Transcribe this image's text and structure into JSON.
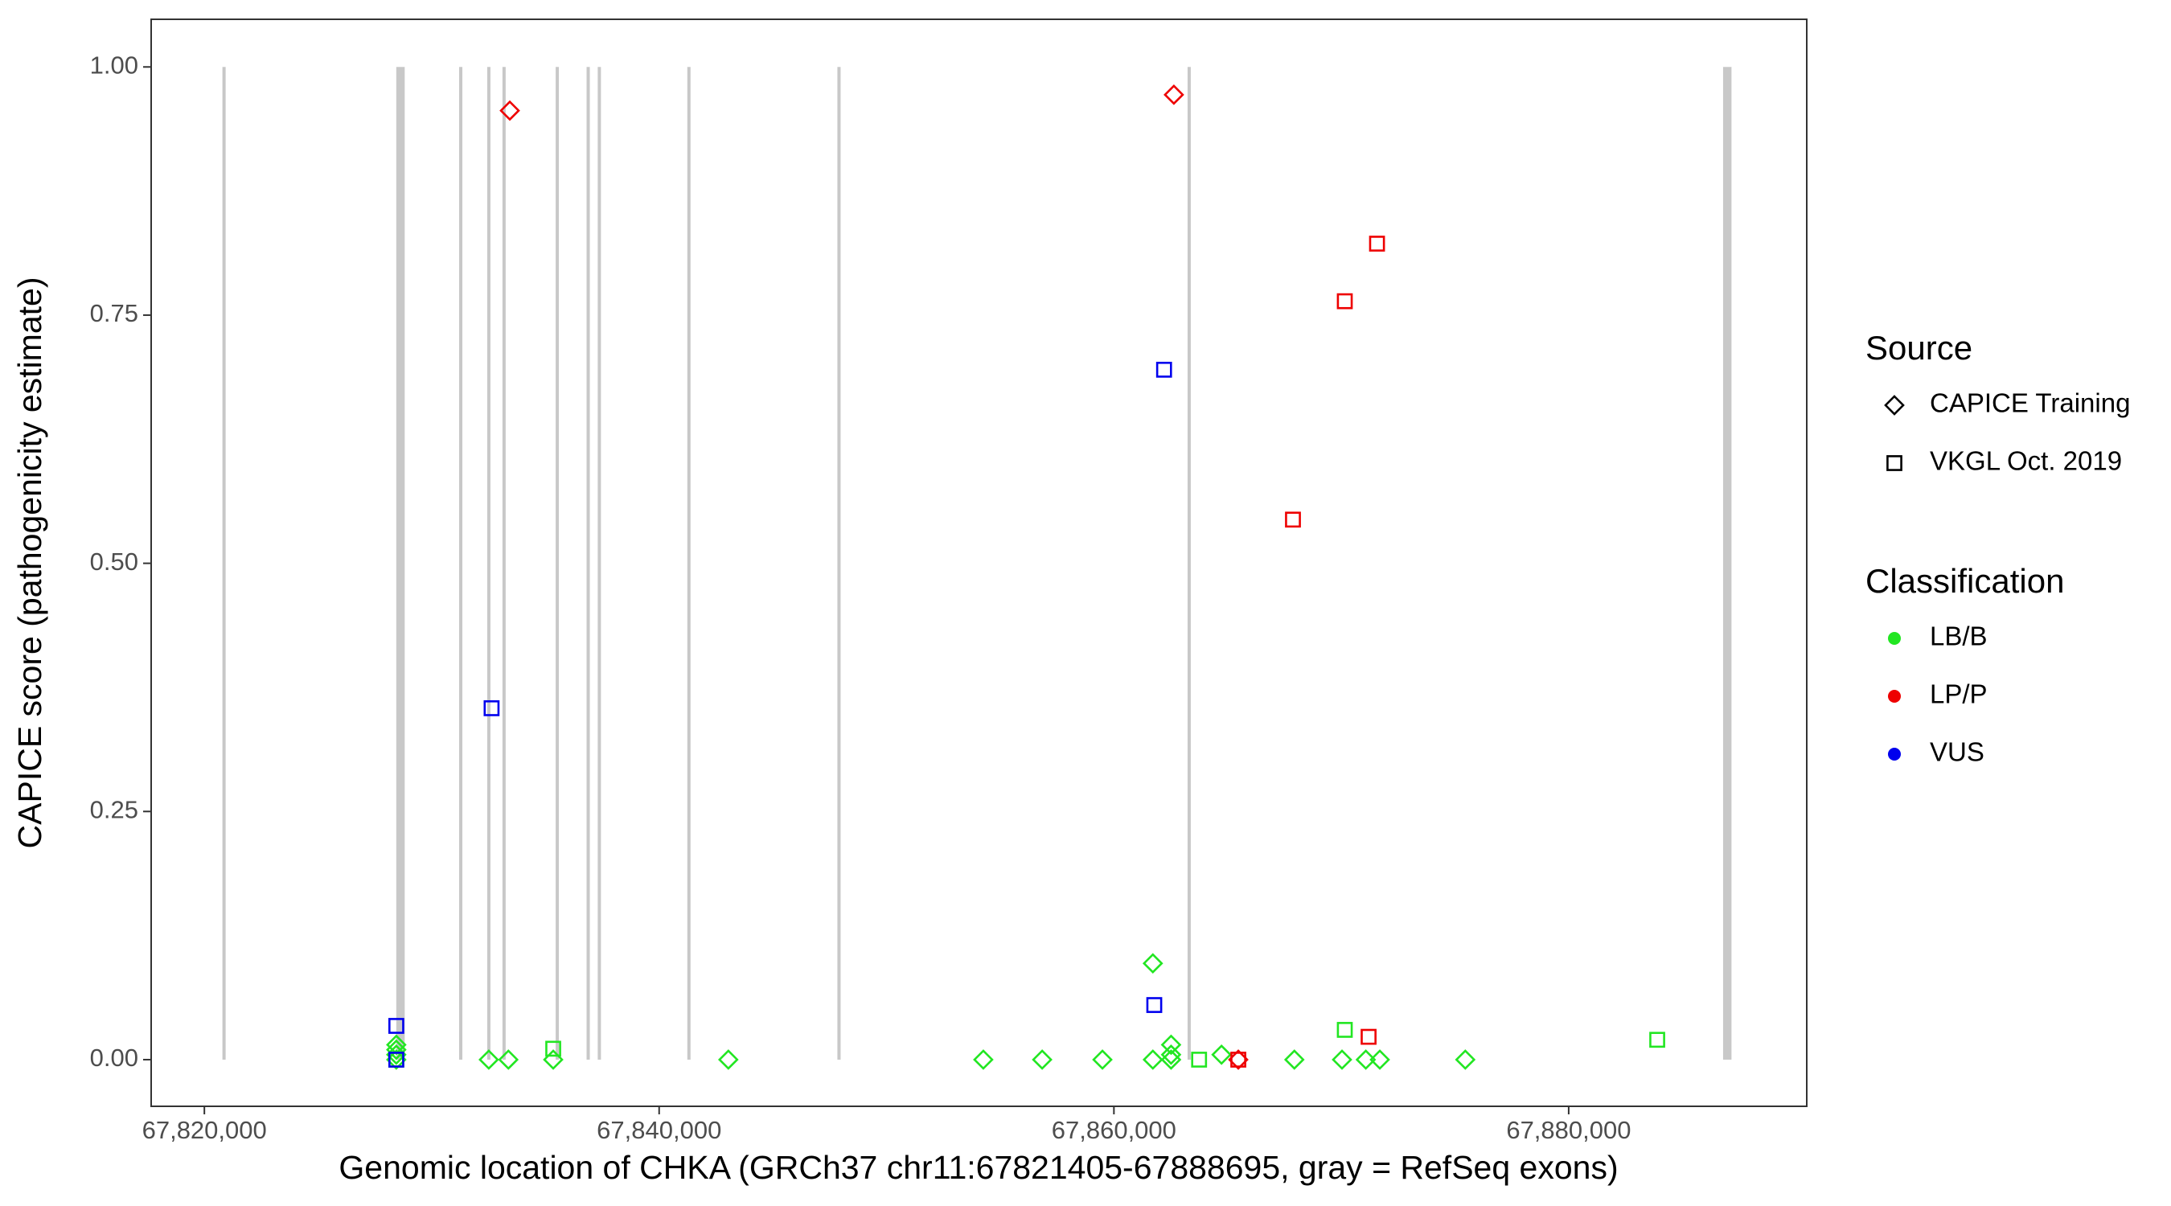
{
  "chart_data": {
    "type": "scatter",
    "x_label": "Genomic location of CHKA (GRCh37 chr11:67821405-67888695, gray = RefSeq exons)",
    "y_label": "CAPICE score (pathogenicity estimate)",
    "xlim": [
      67817660,
      67890470
    ],
    "ylim": [
      -0.047,
      1.048
    ],
    "xticks": [
      {
        "value": 67820000,
        "label": "67,820,000"
      },
      {
        "value": 67840000,
        "label": "67,840,000"
      },
      {
        "value": 67860000,
        "label": "67,860,000"
      },
      {
        "value": 67880000,
        "label": "67,880,000"
      }
    ],
    "yticks": [
      {
        "value": 0,
        "label": "0.00"
      },
      {
        "value": 0.25,
        "label": "0.25"
      },
      {
        "value": 0.5,
        "label": "0.50"
      },
      {
        "value": 0.75,
        "label": "0.75"
      },
      {
        "value": 1,
        "label": "1.00"
      }
    ],
    "grid": false,
    "exon_color": "#c8c8c8",
    "exons": [
      [
        67820800,
        67820930
      ],
      [
        67828440,
        67828810
      ],
      [
        67831210,
        67831340
      ],
      [
        67832450,
        67832570
      ],
      [
        67833120,
        67833240
      ],
      [
        67835460,
        67835580
      ],
      [
        67836820,
        67836940
      ],
      [
        67837310,
        67837430
      ],
      [
        67841250,
        67841370
      ],
      [
        67847850,
        67847970
      ],
      [
        67863250,
        67863370
      ],
      [
        67886790,
        67887160
      ]
    ],
    "sources": [
      {
        "name": "CAPICE Training",
        "shape": "diamond"
      },
      {
        "name": "VKGL Oct. 2019",
        "shape": "square"
      }
    ],
    "classifications": [
      {
        "name": "LB/B",
        "color": "#22e622"
      },
      {
        "name": "LP/P",
        "color": "#ee0000"
      },
      {
        "name": "VUS",
        "color": "#0000ee"
      }
    ],
    "source_title": "Source",
    "classification_title": "Classification",
    "series": [
      {
        "source": "CAPICE Training",
        "classification": "LB/B",
        "x": [
          67828441,
          67828441,
          67828441,
          67828441,
          67832508,
          67833370,
          67835342,
          67843044,
          67854257,
          67856845,
          67859495,
          67861713,
          67861713,
          67862514,
          67862514,
          67862514,
          67864732,
          67867936,
          67870031,
          67871078,
          67871694,
          67875453
        ],
        "values": [
          0,
          0.005,
          0.01,
          0.015,
          0,
          0,
          0,
          0,
          0,
          0,
          0,
          0,
          0.097,
          0,
          0.005,
          0.015,
          0.005,
          0,
          0,
          0,
          0,
          0
        ]
      },
      {
        "source": "CAPICE Training",
        "classification": "LP/P",
        "x": [
          67833432,
          67862637,
          67865471
        ],
        "values": [
          0.956,
          0.972,
          0
        ]
      },
      {
        "source": "VKGL Oct. 2019",
        "classification": "LB/B",
        "x": [
          67828441,
          67835342,
          67863746,
          67870154,
          67883894
        ],
        "values": [
          0,
          0.011,
          0,
          0.03,
          0.02
        ]
      },
      {
        "source": "VKGL Oct. 2019",
        "classification": "LP/P",
        "x": [
          67865471,
          67867874,
          67870154,
          67871201,
          67871571
        ],
        "values": [
          0,
          0.544,
          0.764,
          0.023,
          0.822
        ]
      },
      {
        "source": "VKGL Oct. 2019",
        "classification": "VUS",
        "x": [
          67828441,
          67828441,
          67832631,
          67861775,
          67862206
        ],
        "values": [
          0,
          0.034,
          0.354,
          0.055,
          0.695
        ]
      }
    ]
  }
}
